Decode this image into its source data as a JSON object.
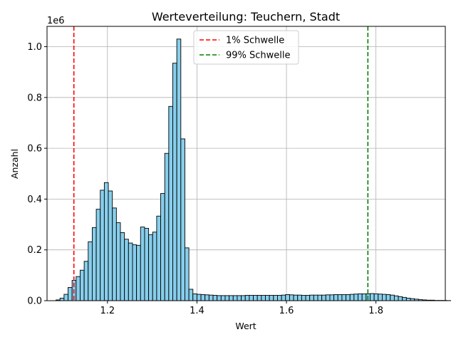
{
  "chart_data": {
    "type": "bar",
    "title": "Werteverteilung: Teuchern, Stadt",
    "xlabel": "Wert",
    "ylabel": "Anzahl",
    "y_multiplier_label": "1e6",
    "xlim": [
      1.065,
      1.955
    ],
    "ylim": [
      0,
      1.08
    ],
    "x_ticks": [
      1.2,
      1.4,
      1.6,
      1.8
    ],
    "x_tick_labels": [
      "1.2",
      "1.4",
      "1.6",
      "1.8"
    ],
    "y_ticks": [
      0.0,
      0.2,
      0.4,
      0.6,
      0.8,
      1.0
    ],
    "y_tick_labels": [
      "0.0",
      "0.2",
      "0.4",
      "0.6",
      "0.8",
      "1.0"
    ],
    "grid": true,
    "bin_start": 1.085,
    "bin_width": 0.009,
    "bar_color": "#87ceeb",
    "edge_color": "#000000",
    "values": [
      0.003,
      0.01,
      0.025,
      0.052,
      0.08,
      0.095,
      0.12,
      0.155,
      0.232,
      0.288,
      0.36,
      0.435,
      0.465,
      0.432,
      0.365,
      0.307,
      0.268,
      0.242,
      0.227,
      0.22,
      0.218,
      0.29,
      0.285,
      0.26,
      0.27,
      0.333,
      0.422,
      0.58,
      0.765,
      0.935,
      1.03,
      0.637,
      0.208,
      0.045,
      0.027,
      0.025,
      0.024,
      0.023,
      0.022,
      0.021,
      0.02,
      0.02,
      0.02,
      0.02,
      0.02,
      0.02,
      0.02,
      0.021,
      0.021,
      0.021,
      0.021,
      0.021,
      0.021,
      0.021,
      0.021,
      0.021,
      0.022,
      0.024,
      0.023,
      0.022,
      0.022,
      0.021,
      0.021,
      0.022,
      0.022,
      0.022,
      0.022,
      0.023,
      0.023,
      0.024,
      0.024,
      0.024,
      0.024,
      0.025,
      0.026,
      0.027,
      0.027,
      0.027,
      0.028,
      0.027,
      0.026,
      0.025,
      0.024,
      0.022,
      0.019,
      0.016,
      0.013,
      0.01,
      0.008,
      0.006,
      0.004,
      0.003,
      0.002,
      0.002,
      0.001,
      0.001,
      0.001,
      0.0005
    ],
    "thresholds": [
      {
        "name": "1% Schwelle",
        "x": 1.125,
        "color": "#ff0000"
      },
      {
        "name": "99% Schwelle",
        "x": 1.782,
        "color": "#008000"
      }
    ],
    "legend_position": "upper center"
  }
}
